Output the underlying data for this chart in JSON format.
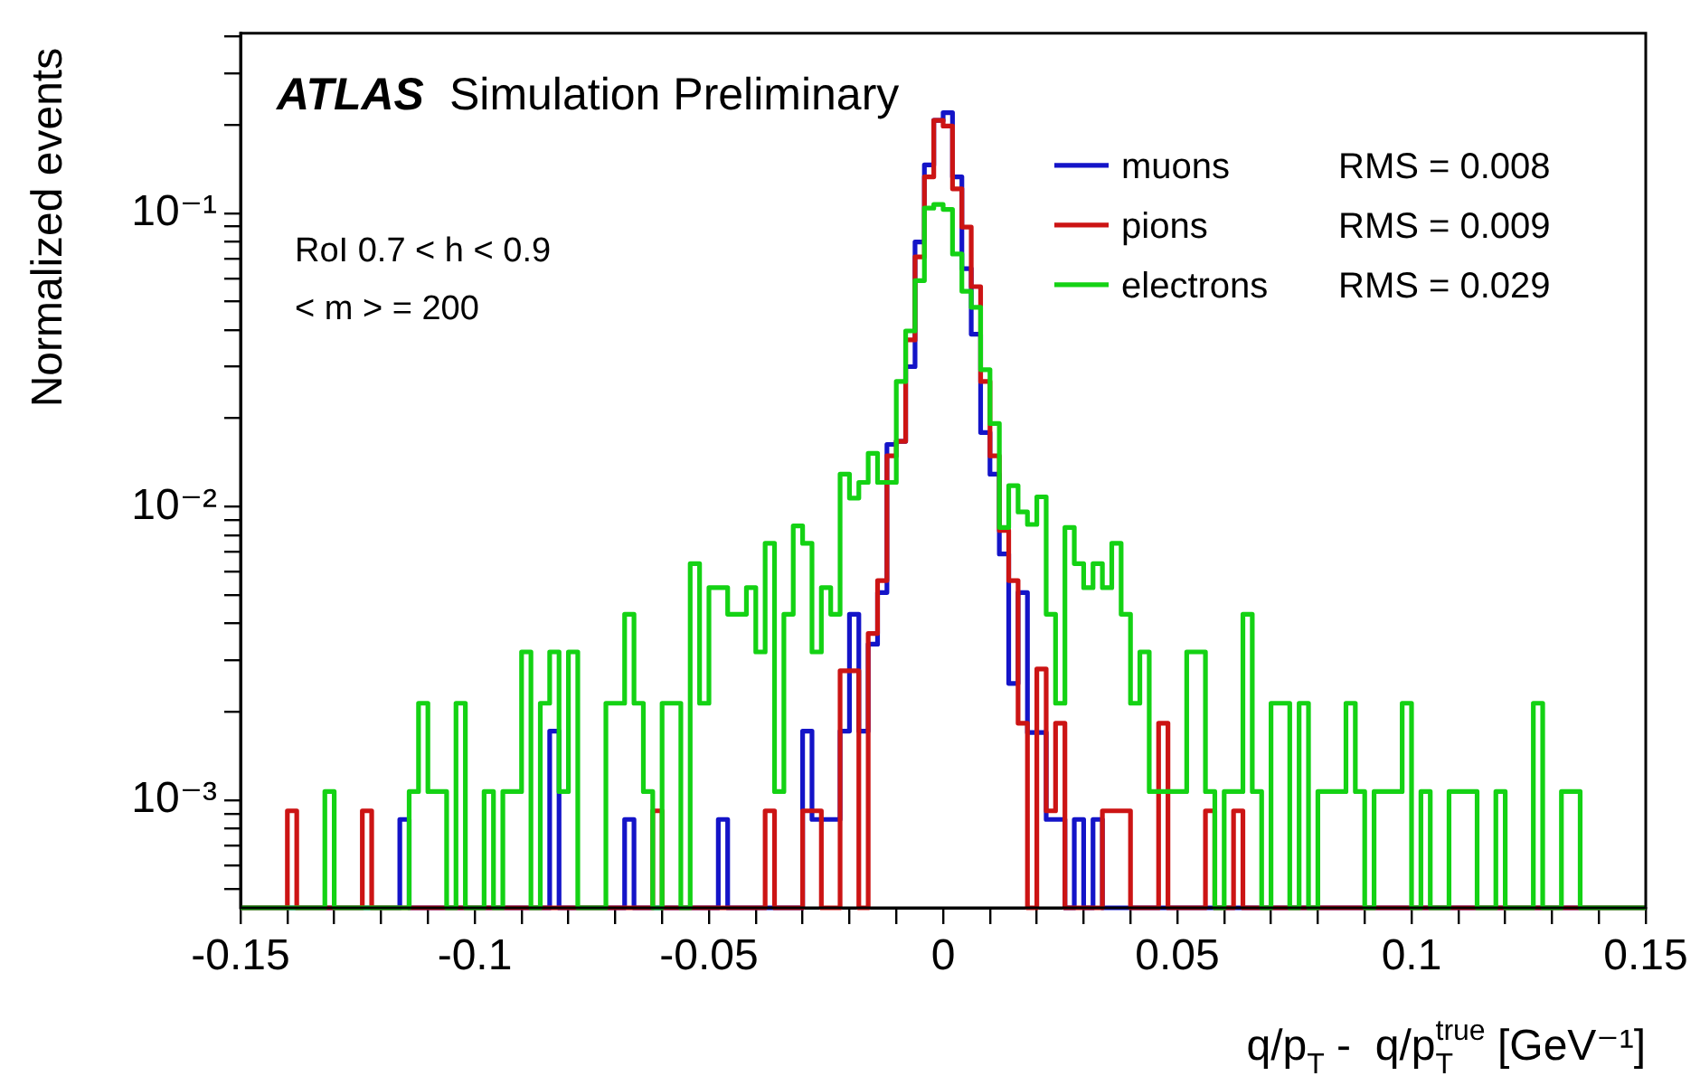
{
  "chart_data": {
    "type": "histogram",
    "title": "ATLAS",
    "subtitle": "Simulation Preliminary",
    "xlabel": "q/p$_{T}$ -  q/p$_{T}$$^{true}$ [GeV⁻¹]",
    "ylabel": "Normalized events",
    "bins": [
      -0.15,
      -0.148,
      -0.146,
      -0.144,
      -0.142,
      -0.14,
      -0.138,
      -0.136,
      -0.134,
      -0.132,
      -0.13,
      -0.128,
      -0.126,
      -0.124,
      -0.122,
      -0.12,
      -0.118,
      -0.116,
      -0.114,
      -0.112,
      -0.11,
      -0.108,
      -0.106,
      -0.104,
      -0.102,
      -0.1,
      -0.098,
      -0.096,
      -0.094,
      -0.092,
      -0.09,
      -0.088,
      -0.086,
      -0.084,
      -0.082,
      -0.08,
      -0.078,
      -0.076,
      -0.074,
      -0.072,
      -0.07,
      -0.068,
      -0.066,
      -0.064,
      -0.062,
      -0.06,
      -0.058,
      -0.056,
      -0.054,
      -0.052,
      -0.05,
      -0.048,
      -0.046,
      -0.044,
      -0.042,
      -0.04,
      -0.038,
      -0.036,
      -0.034,
      -0.032,
      -0.03,
      -0.028,
      -0.026,
      -0.024,
      -0.022,
      -0.02,
      -0.018,
      -0.016,
      -0.014,
      -0.012,
      -0.01,
      -0.008,
      -0.006,
      -0.004,
      -0.002,
      0,
      0.002,
      0.004,
      0.006,
      0.008,
      0.01,
      0.012,
      0.014,
      0.016,
      0.018,
      0.02,
      0.022,
      0.024,
      0.026,
      0.028,
      0.03,
      0.032,
      0.034,
      0.036,
      0.038,
      0.04,
      0.042,
      0.044,
      0.046,
      0.048,
      0.05,
      0.052,
      0.054,
      0.056,
      0.058,
      0.06,
      0.062,
      0.064,
      0.066,
      0.068,
      0.07,
      0.072,
      0.074,
      0.076,
      0.078,
      0.08,
      0.082,
      0.084,
      0.086,
      0.088,
      0.09,
      0.092,
      0.094,
      0.096,
      0.098,
      0.1,
      0.102,
      0.104,
      0.106,
      0.108,
      0.11,
      0.112,
      0.114,
      0.116,
      0.118,
      0.12,
      0.122,
      0.124,
      0.126,
      0.128,
      0.13,
      0.132,
      0.134,
      0.136,
      0.138,
      0.14,
      0.142,
      0.144,
      0.146,
      0.148,
      0.15
    ],
    "series": [
      {
        "name": "muons",
        "color": "#1414c8",
        "values": [
          null,
          null,
          null,
          null,
          null,
          null,
          null,
          null,
          null,
          null,
          null,
          null,
          null,
          null,
          null,
          null,
          null,
          0.00086,
          null,
          null,
          null,
          null,
          null,
          null,
          null,
          null,
          null,
          null,
          null,
          null,
          null,
          null,
          null,
          0.00172,
          null,
          null,
          null,
          null,
          null,
          null,
          null,
          0.00086,
          null,
          null,
          null,
          null,
          null,
          null,
          null,
          null,
          null,
          0.00086,
          null,
          null,
          null,
          null,
          null,
          null,
          null,
          null,
          0.00172,
          0.00086,
          0.00086,
          0.00086,
          0.00172,
          0.0043,
          0.00172,
          0.0034,
          0.0051,
          0.0163,
          0.0167,
          0.03,
          0.0798,
          0.146,
          0.207,
          0.22,
          0.133,
          0.0647,
          0.0387,
          0.0179,
          0.0129,
          0.0069,
          0.0025,
          0.0051,
          0.0017,
          0.0017,
          0.00086,
          0.00086,
          null,
          0.00086,
          null,
          0.00086,
          null,
          null,
          null,
          null,
          null,
          null,
          null,
          null,
          null,
          null,
          null,
          null,
          null,
          null,
          null,
          null,
          null,
          null,
          null,
          null,
          null,
          null,
          null,
          null,
          null,
          null,
          null,
          null,
          null,
          null,
          null,
          null,
          null,
          null,
          null,
          null,
          null,
          null,
          null,
          null,
          null,
          null,
          null,
          null,
          null,
          null,
          null,
          null,
          null,
          null,
          null,
          null,
          null,
          null,
          null,
          null,
          null,
          null
        ]
      },
      {
        "name": "pions",
        "color": "#cc1414",
        "values": [
          null,
          null,
          null,
          null,
          null,
          0.00092,
          null,
          null,
          null,
          null,
          null,
          null,
          null,
          0.00092,
          null,
          null,
          null,
          null,
          null,
          null,
          null,
          null,
          null,
          null,
          null,
          null,
          null,
          null,
          null,
          null,
          null,
          null,
          null,
          null,
          null,
          null,
          null,
          null,
          null,
          null,
          null,
          null,
          null,
          null,
          0.00092,
          null,
          null,
          null,
          null,
          null,
          null,
          null,
          null,
          null,
          null,
          null,
          0.00092,
          null,
          null,
          null,
          0.00092,
          0.00092,
          null,
          null,
          0.00276,
          0.00276,
          null,
          0.0037,
          0.0056,
          0.0149,
          0.0167,
          0.037,
          0.0709,
          0.133,
          0.207,
          0.198,
          0.121,
          0.0897,
          0.0562,
          0.0267,
          0.0149,
          0.0083,
          0.0056,
          0.00183,
          null,
          0.0028,
          0.00092,
          0.00183,
          null,
          null,
          null,
          null,
          0.00092,
          0.00092,
          0.00092,
          null,
          null,
          null,
          0.00183,
          null,
          null,
          null,
          null,
          0.00092,
          null,
          null,
          0.00092,
          null,
          null,
          null,
          null,
          null,
          null,
          null,
          null,
          null,
          null,
          null,
          null,
          null,
          null,
          null,
          null,
          null,
          null,
          null,
          null,
          null,
          null,
          null,
          null,
          null,
          null,
          null,
          null,
          null,
          null,
          null,
          null,
          null,
          null,
          null,
          null,
          null,
          null,
          null,
          null,
          null,
          null,
          null
        ]
      },
      {
        "name": "electrons",
        "color": "#14d214",
        "values": [
          null,
          null,
          null,
          null,
          null,
          null,
          null,
          null,
          null,
          0.00107,
          null,
          null,
          null,
          null,
          null,
          null,
          null,
          null,
          0.00107,
          0.00214,
          0.00107,
          0.00107,
          null,
          0.00214,
          null,
          null,
          0.00107,
          null,
          0.00107,
          0.00107,
          0.0032,
          null,
          0.00214,
          0.0032,
          0.00107,
          0.0032,
          null,
          null,
          null,
          0.00214,
          0.00214,
          0.0043,
          0.00214,
          0.00107,
          null,
          0.00214,
          0.00214,
          null,
          0.0064,
          0.00214,
          0.0053,
          0.0053,
          0.0043,
          0.0043,
          0.0053,
          0.0032,
          0.0075,
          0.00107,
          0.0043,
          0.0086,
          0.0075,
          0.0032,
          0.0053,
          0.0043,
          0.0129,
          0.0107,
          0.0121,
          0.0152,
          0.0121,
          0.0121,
          0.0267,
          0.0397,
          0.0589,
          0.104,
          0.107,
          0.103,
          0.0726,
          0.0542,
          0.0478,
          0.0293,
          0.0192,
          0.0085,
          0.0118,
          0.0096,
          0.0087,
          0.0108,
          0.0043,
          0.00214,
          0.0085,
          0.0064,
          0.0053,
          0.0064,
          0.0053,
          0.0075,
          0.0043,
          0.00214,
          0.0032,
          0.00107,
          0.00107,
          0.00107,
          0.00107,
          0.0032,
          0.0032,
          0.00107,
          null,
          0.00107,
          0.00107,
          0.0043,
          0.00107,
          null,
          0.00214,
          0.00214,
          null,
          0.00214,
          null,
          0.00107,
          0.00107,
          0.00107,
          0.00214,
          0.00107,
          null,
          0.00107,
          0.00107,
          0.00107,
          0.00214,
          null,
          0.00107,
          null,
          null,
          0.00107,
          0.00107,
          0.00107,
          null,
          null,
          0.00107,
          null,
          null,
          null,
          0.00214,
          null,
          null,
          0.00107,
          0.00107,
          null,
          null,
          null,
          null,
          null,
          null,
          null
        ]
      }
    ],
    "xlim": [
      -0.15,
      0.15
    ],
    "xticks": [
      -0.15,
      {
        "value": -0.14,
        "label": null
      },
      {
        "value": -0.13,
        "label": null
      },
      {
        "value": -0.12,
        "label": null
      },
      {
        "value": -0.11,
        "label": null
      },
      -0.1,
      {
        "value": -0.09,
        "label": null
      },
      {
        "value": -0.08,
        "label": null
      },
      {
        "value": -0.07,
        "label": null
      },
      {
        "value": -0.06,
        "label": null
      },
      -0.05,
      {
        "value": -0.04,
        "label": null
      },
      {
        "value": -0.03,
        "label": null
      },
      {
        "value": -0.02,
        "label": null
      },
      {
        "value": -0.01,
        "label": null
      },
      0,
      {
        "value": 0.01,
        "label": null
      },
      {
        "value": 0.02,
        "label": null
      },
      {
        "value": 0.03,
        "label": null
      },
      {
        "value": 0.04,
        "label": null
      },
      0.05,
      {
        "value": 0.06,
        "label": null
      },
      {
        "value": 0.07,
        "label": null
      },
      {
        "value": 0.08,
        "label": null
      },
      {
        "value": 0.09,
        "label": null
      },
      0.1,
      {
        "value": 0.11,
        "label": null
      },
      {
        "value": 0.12,
        "label": null
      },
      {
        "value": 0.13,
        "label": null
      },
      {
        "value": 0.14,
        "label": null
      },
      0.15
    ],
    "ylim": [
      0.00043,
      0.41
    ],
    "yticks": [
      {
        "value": 0.0005,
        "label": null
      },
      {
        "value": 0.0006,
        "label": null
      },
      {
        "value": 0.0007,
        "label": null
      },
      {
        "value": 0.0008,
        "label": null
      },
      {
        "value": 0.0009,
        "label": null
      },
      {
        "value": 0.001,
        "label": "10⁻³"
      },
      {
        "value": 0.002,
        "label": null
      },
      {
        "value": 0.003,
        "label": null
      },
      {
        "value": 0.004,
        "label": null
      },
      {
        "value": 0.005,
        "label": null
      },
      {
        "value": 0.006,
        "label": null
      },
      {
        "value": 0.007,
        "label": null
      },
      {
        "value": 0.008,
        "label": null
      },
      {
        "value": 0.009,
        "label": null
      },
      {
        "value": 0.01,
        "label": "10⁻²"
      },
      {
        "value": 0.02,
        "label": null
      },
      {
        "value": 0.03,
        "label": null
      },
      {
        "value": 0.04,
        "label": null
      },
      {
        "value": 0.05,
        "label": null
      },
      {
        "value": 0.06,
        "label": null
      },
      {
        "value": 0.07,
        "label": null
      },
      {
        "value": 0.08,
        "label": null
      },
      {
        "value": 0.09,
        "label": null
      },
      {
        "value": 0.1,
        "label": "10⁻¹"
      },
      {
        "value": 0.2,
        "label": null
      },
      {
        "value": 0.3,
        "label": null
      },
      {
        "value": 0.4,
        "label": null
      }
    ],
    "log": "y",
    "legend": "top right",
    "annotations": [
      "RoI 0.7 < h < 0.9",
      "< m > = 200",
      "RMS = 0.008",
      "RMS = 0.009",
      "RMS = 0.029"
    ]
  }
}
